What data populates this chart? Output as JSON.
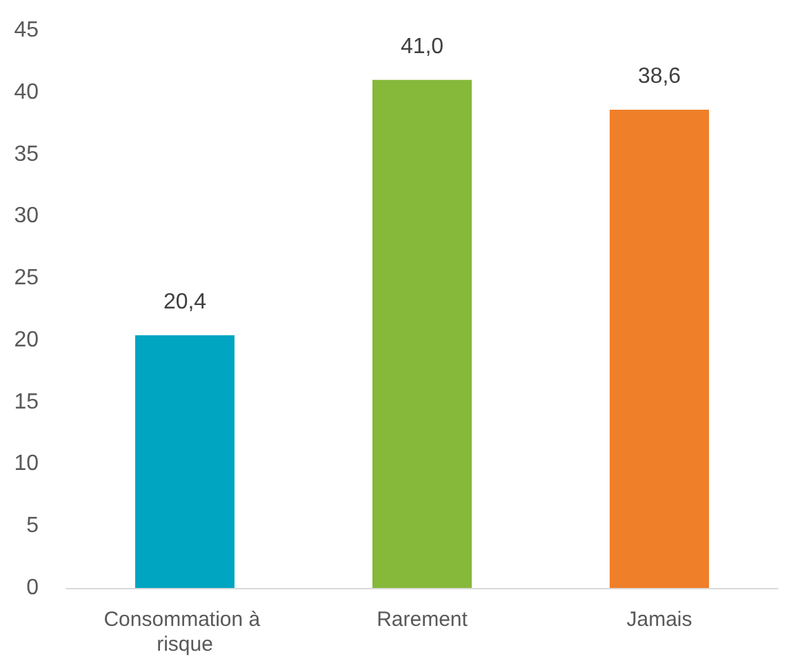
{
  "chart_data": {
    "type": "bar",
    "categories": [
      "Consommation à risque",
      "Rarement",
      "Jamais"
    ],
    "values": [
      20.4,
      41.0,
      38.6
    ],
    "colors": [
      "#00a5c1",
      "#86b83a",
      "#f07f29"
    ],
    "value_labels": [
      "20,4",
      "41,0",
      "38,6"
    ],
    "ylim": [
      0,
      45
    ],
    "yticks": [
      0,
      5,
      10,
      15,
      20,
      25,
      30,
      35,
      40,
      45
    ],
    "grid": false
  }
}
